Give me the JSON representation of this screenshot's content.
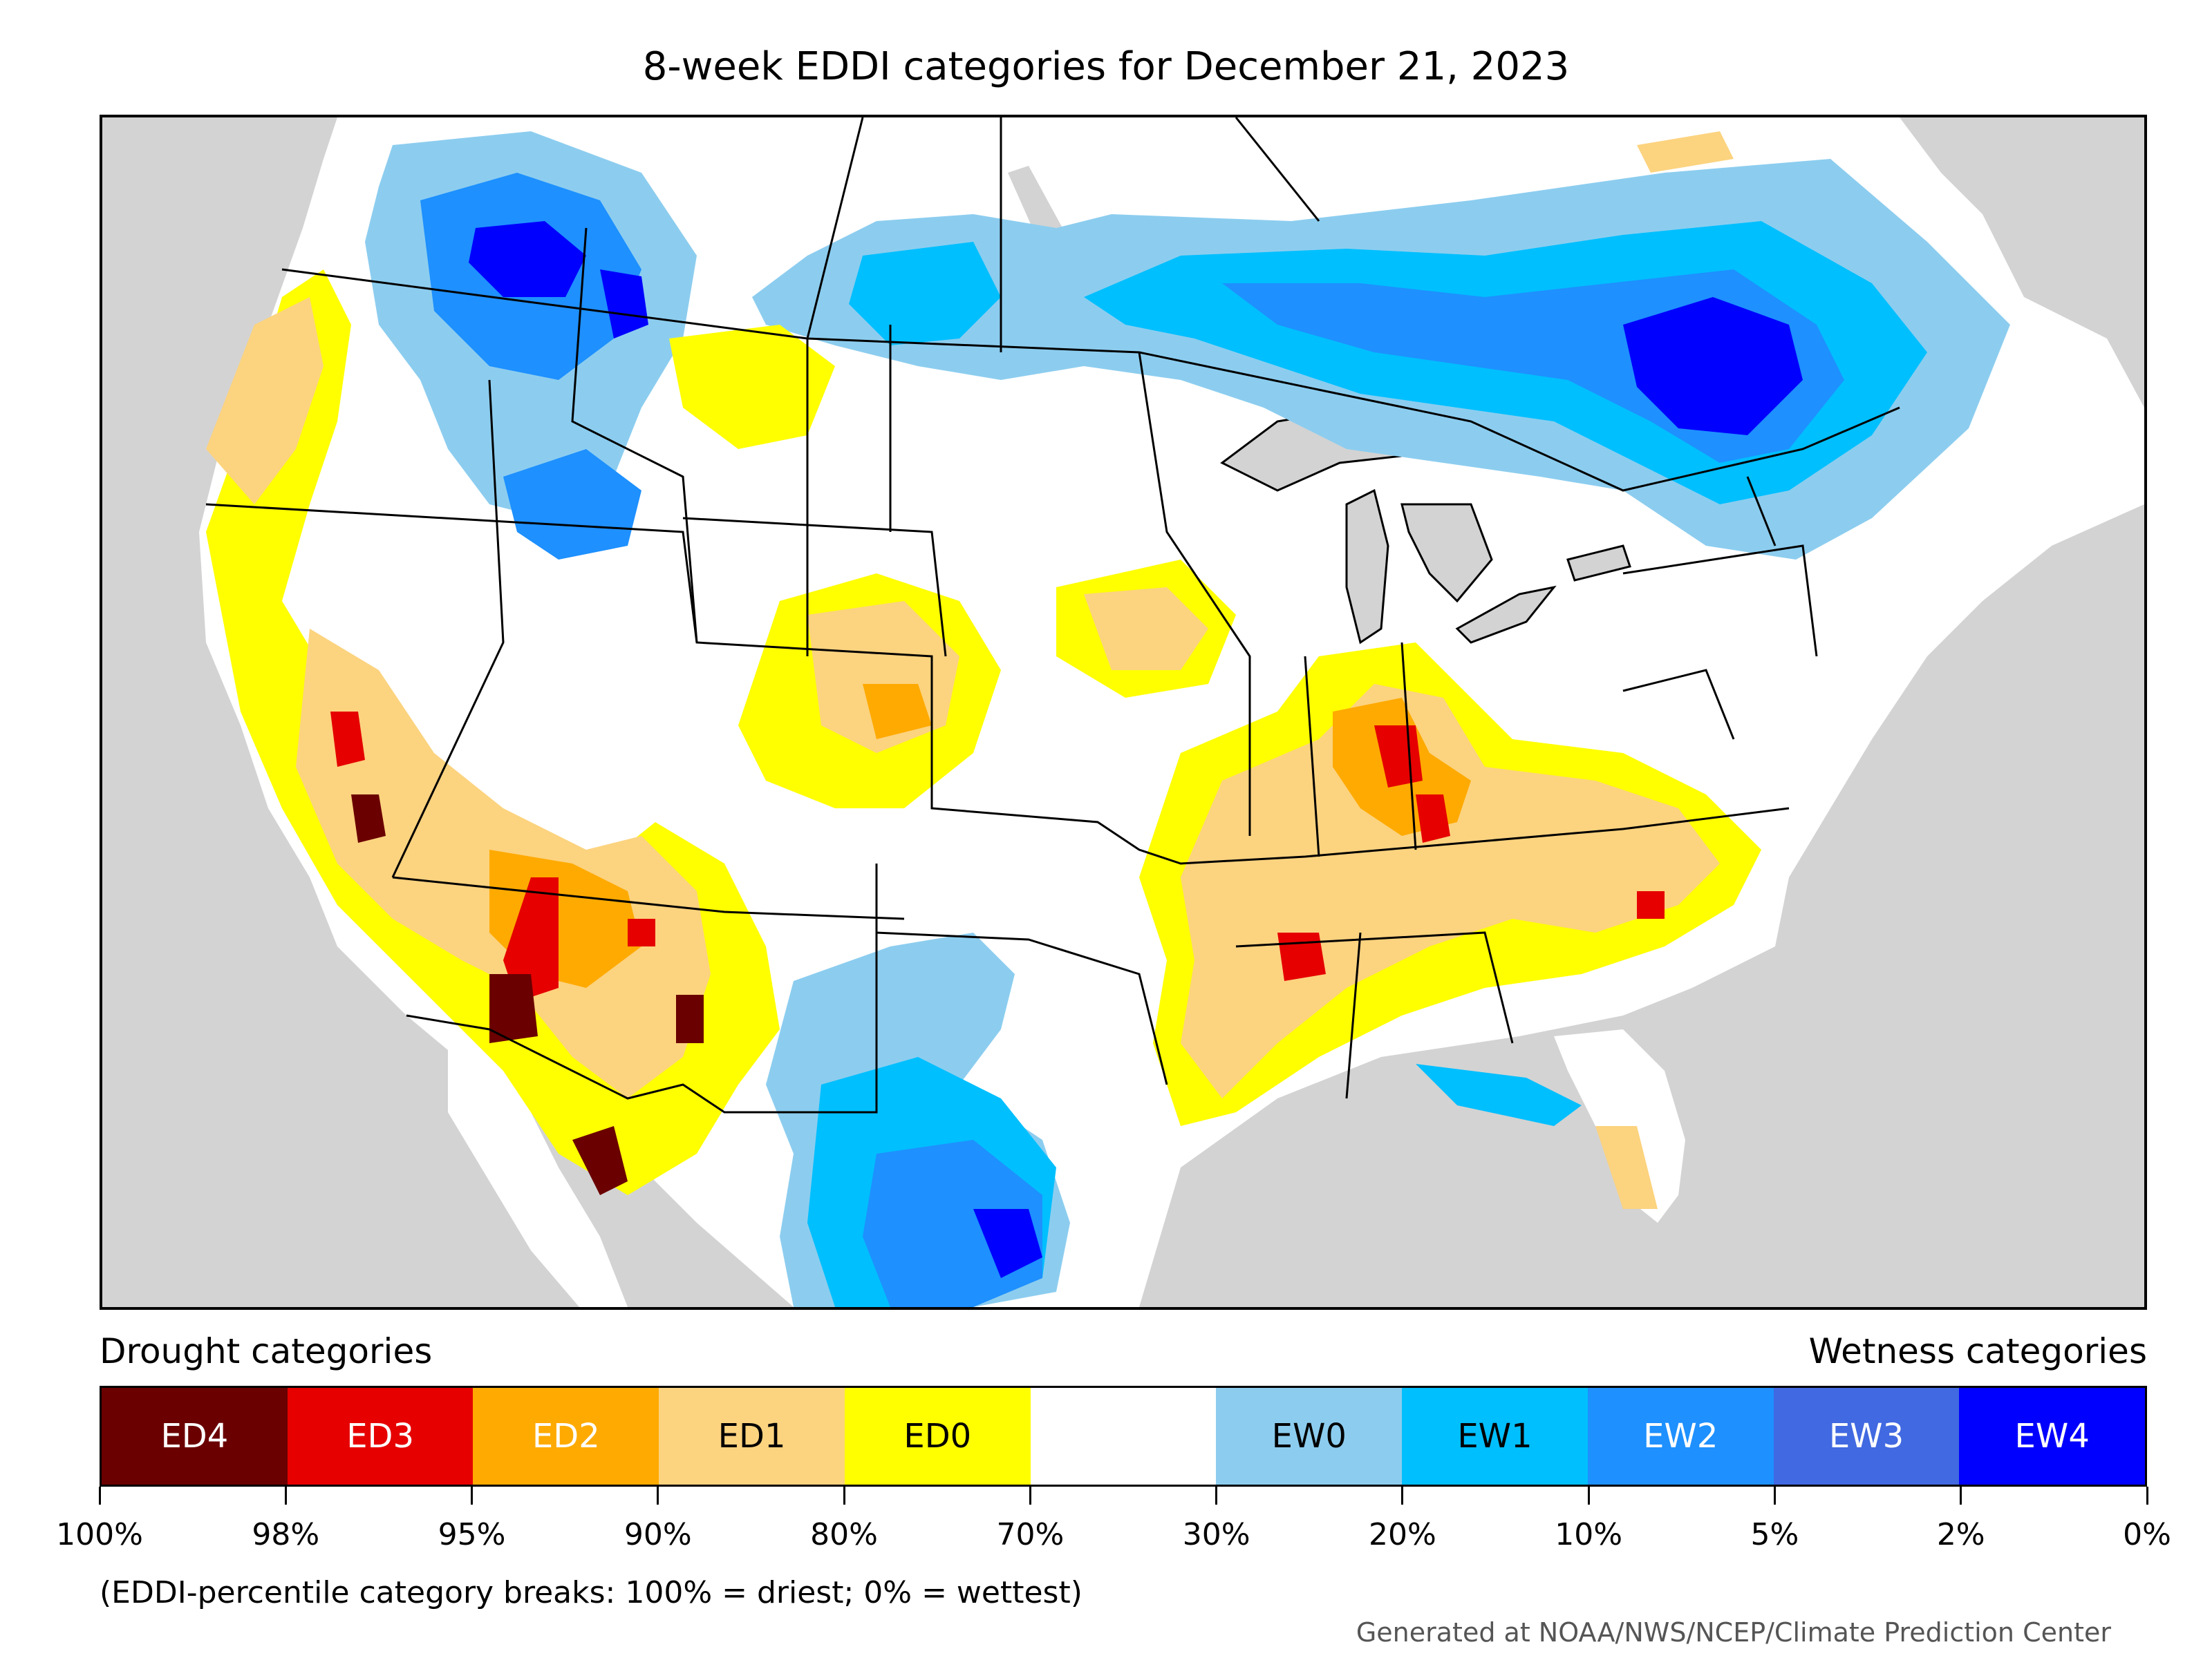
{
  "title": "8-week EDDI categories for December 21, 2023",
  "legend": {
    "drought_heading": "Drought categories",
    "wetness_heading": "Wetness categories",
    "categories": [
      {
        "label": "ED4",
        "color": "#6b0000",
        "text_color": "#ffffff"
      },
      {
        "label": "ED3",
        "color": "#e60000",
        "text_color": "#ffffff"
      },
      {
        "label": "ED2",
        "color": "#ffaa00",
        "text_color": "#ffffff"
      },
      {
        "label": "ED1",
        "color": "#fcd37f",
        "text_color": "#000000"
      },
      {
        "label": "ED0",
        "color": "#ffff00",
        "text_color": "#000000"
      },
      {
        "label": "",
        "color": "#ffffff",
        "text_color": "#000000"
      },
      {
        "label": "EW0",
        "color": "#8ccdef",
        "text_color": "#000000"
      },
      {
        "label": "EW1",
        "color": "#00bfff",
        "text_color": "#000000"
      },
      {
        "label": "EW2",
        "color": "#1e90ff",
        "text_color": "#ffffff"
      },
      {
        "label": "EW3",
        "color": "#4169e1",
        "text_color": "#ffffff"
      },
      {
        "label": "EW4",
        "color": "#0000ff",
        "text_color": "#ffffff"
      }
    ],
    "breaks": [
      "100%",
      "98%",
      "95%",
      "90%",
      "80%",
      "70%",
      "30%",
      "20%",
      "10%",
      "5%",
      "2%",
      "0%"
    ]
  },
  "footnote": "(EDDI-percentile category breaks: 100% = driest; 0% = wettest)",
  "credit": "Generated at NOAA/NWS/NCEP/Climate Prediction Center",
  "map_colors": {
    "background": "#d3d3d3",
    "land": "#ffffff",
    "borders": "#000000"
  }
}
